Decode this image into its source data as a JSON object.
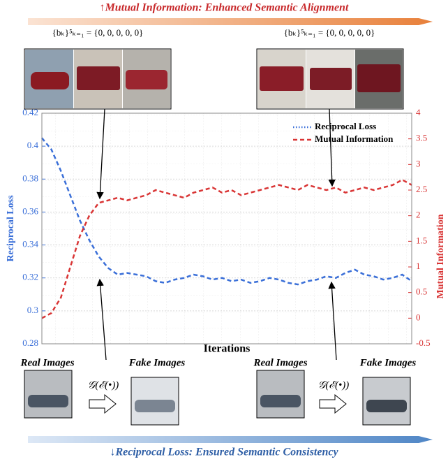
{
  "chart_data": {
    "type": "line",
    "title": "↑Mutual Information: Enhanced Semantic Alignment",
    "subtitle": "↓Reciprocal Loss: Ensured Semantic Consistency",
    "xlabel": "Iterations",
    "ylabel": "Reciprocal Loss",
    "y2label": "Mutual Information",
    "ylim": [
      0.28,
      0.42
    ],
    "yticks": [
      0.28,
      0.3,
      0.32,
      0.34,
      0.36,
      0.38,
      0.4,
      0.42
    ],
    "y2lim": [
      -0.5,
      4
    ],
    "y2ticks": [
      -0.5,
      0,
      0.5,
      1,
      1.5,
      2,
      2.5,
      3,
      3.5,
      4
    ],
    "grid": true,
    "legend": "upper right",
    "series": [
      {
        "name": "Reciprocal Loss",
        "color": "#3a6fd8",
        "axis": "y",
        "values": [
          0.405,
          0.398,
          0.385,
          0.37,
          0.355,
          0.343,
          0.333,
          0.326,
          0.322,
          0.323,
          0.322,
          0.321,
          0.318,
          0.317,
          0.319,
          0.32,
          0.322,
          0.321,
          0.319,
          0.32,
          0.318,
          0.319,
          0.317,
          0.318,
          0.32,
          0.319,
          0.317,
          0.316,
          0.318,
          0.319,
          0.321,
          0.32,
          0.323,
          0.325,
          0.322,
          0.321,
          0.319,
          0.32,
          0.322,
          0.318
        ]
      },
      {
        "name": "Mutual Information",
        "color": "#d93535",
        "axis": "y2",
        "values": [
          0.0,
          0.1,
          0.4,
          1.0,
          1.6,
          2.0,
          2.25,
          2.3,
          2.35,
          2.3,
          2.35,
          2.4,
          2.5,
          2.45,
          2.4,
          2.35,
          2.45,
          2.5,
          2.55,
          2.45,
          2.5,
          2.4,
          2.45,
          2.5,
          2.55,
          2.6,
          2.55,
          2.5,
          2.6,
          2.55,
          2.5,
          2.55,
          2.45,
          2.5,
          2.55,
          2.5,
          2.55,
          2.6,
          2.7,
          2.6
        ]
      }
    ],
    "annotations": {
      "codes": [
        "{bₖ}⁵ₖ₌₁ = {0, 0, 0, 0, 0}",
        "{bₖ}⁵ₖ₌₁ = {0, 0, 0, 0, 0}"
      ],
      "real": [
        "Real Images",
        "Real Images"
      ],
      "fake": [
        "Fake Images",
        "Fake Images"
      ],
      "generator": [
        "𝒢(ℰ(•))",
        "𝒢(ℰ(•))"
      ]
    }
  }
}
